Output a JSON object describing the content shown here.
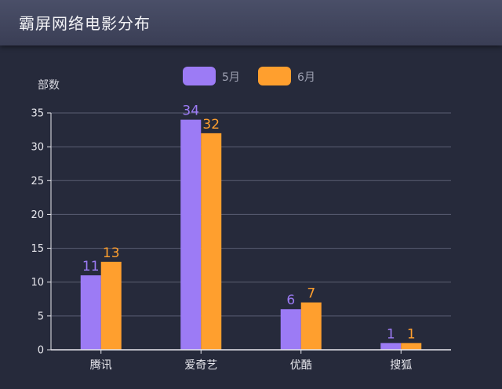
{
  "header": {
    "title": "霸屏网络电影分布"
  },
  "colors": {
    "series0": "#9c7bf5",
    "series1": "#ff9f2e",
    "grid": "#5a5e73",
    "axis": "#e8e8ee"
  },
  "chart_data": {
    "type": "bar",
    "title": "霸屏网络电影分布",
    "ylabel": "部数",
    "xlabel": "",
    "categories": [
      "腾讯",
      "爱奇艺",
      "优酷",
      "搜狐"
    ],
    "series": [
      {
        "name": "5月",
        "values": [
          11,
          34,
          6,
          1
        ]
      },
      {
        "name": "6月",
        "values": [
          13,
          32,
          7,
          1
        ]
      }
    ],
    "ylim": [
      0,
      35
    ],
    "yticks": [
      0,
      5,
      10,
      15,
      20,
      25,
      30,
      35
    ],
    "grid": true,
    "legend_position": "top-center"
  }
}
